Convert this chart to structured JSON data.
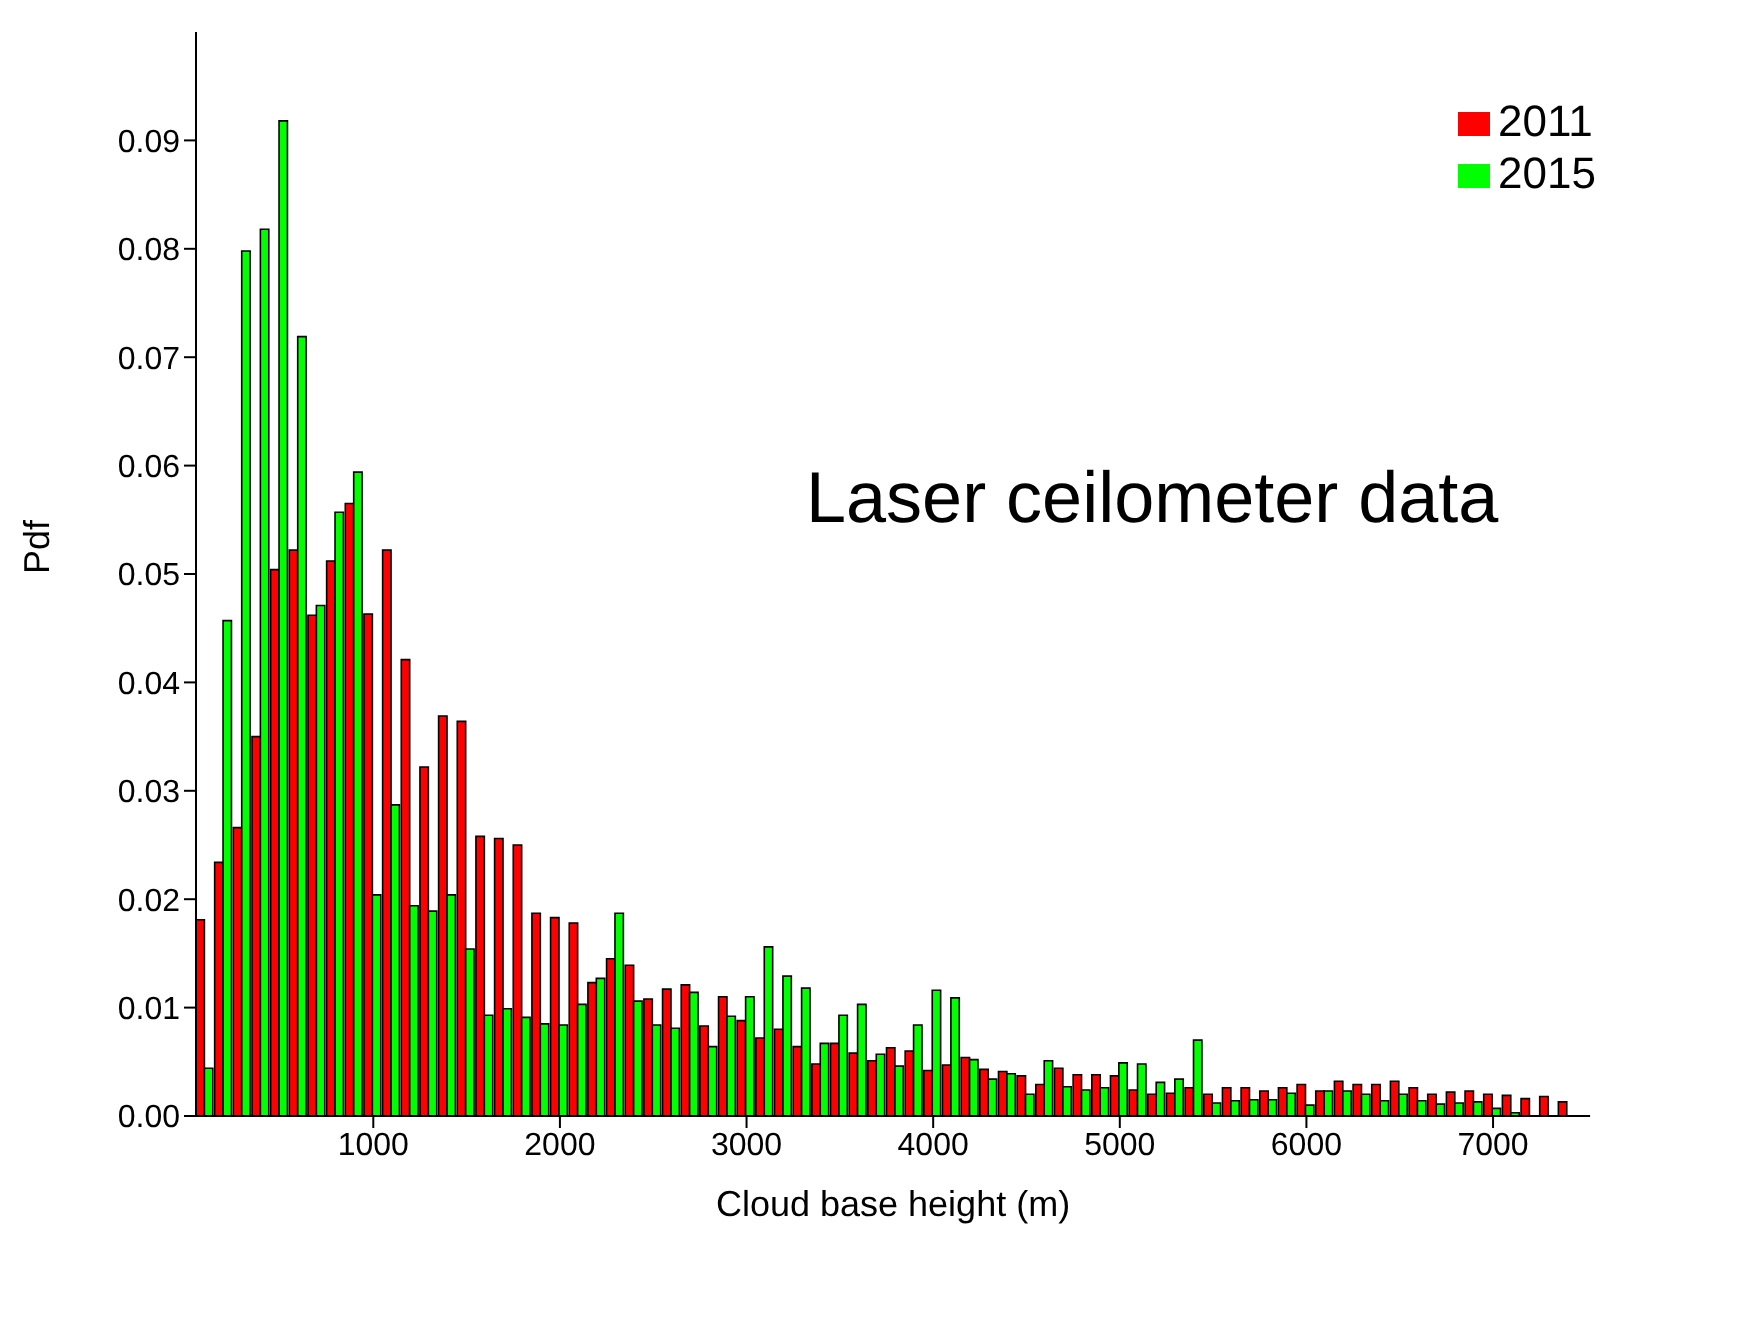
{
  "chart_data": {
    "type": "bar",
    "xlabel": "Cloud base height (m)",
    "ylabel": "Pdf",
    "annotations": [
      "Laser ceilometer data"
    ],
    "x": [
      100,
      200,
      300,
      400,
      500,
      600,
      700,
      800,
      900,
      1000,
      1100,
      1200,
      1300,
      1400,
      1500,
      1600,
      1700,
      1800,
      1900,
      2000,
      2100,
      2200,
      2300,
      2400,
      2500,
      2600,
      2700,
      2800,
      2900,
      3000,
      3100,
      3200,
      3300,
      3400,
      3500,
      3600,
      3700,
      3800,
      3900,
      4000,
      4100,
      4200,
      4300,
      4400,
      4500,
      4600,
      4700,
      4800,
      4900,
      5000,
      5100,
      5200,
      5300,
      5400,
      5500,
      5600,
      5700,
      5800,
      5900,
      6000,
      6100,
      6200,
      6300,
      6400,
      6500,
      6600,
      6700,
      6800,
      6900,
      7000,
      7100,
      7200,
      7300,
      7400
    ],
    "series": [
      {
        "name": "2011",
        "color": "#ff0000",
        "values": [
          0.0181,
          0.0234,
          0.0266,
          0.035,
          0.0504,
          0.0522,
          0.0462,
          0.0512,
          0.0565,
          0.0463,
          0.0522,
          0.0421,
          0.0322,
          0.0369,
          0.0364,
          0.0258,
          0.0256,
          0.025,
          0.0187,
          0.0183,
          0.0178,
          0.0123,
          0.0145,
          0.0139,
          0.0108,
          0.0117,
          0.0121,
          0.0083,
          0.011,
          0.0088,
          0.0072,
          0.008,
          0.0064,
          0.0048,
          0.0067,
          0.0058,
          0.0051,
          0.0063,
          0.006,
          0.0042,
          0.0047,
          0.0054,
          0.0043,
          0.0041,
          0.0037,
          0.0029,
          0.0044,
          0.0038,
          0.0038,
          0.0037,
          0.0024,
          0.002,
          0.0021,
          0.0026,
          0.002,
          0.0026,
          0.0026,
          0.0023,
          0.0026,
          0.0029,
          0.0023,
          0.0032,
          0.0029,
          0.0029,
          0.0032,
          0.0026,
          0.002,
          0.0022,
          0.0023,
          0.002,
          0.0019,
          0.0016,
          0.0018,
          0.0013
        ]
      },
      {
        "name": "2015",
        "color": "#00ff00",
        "values": [
          0.0044,
          0.0457,
          0.0798,
          0.0818,
          0.0918,
          0.0719,
          0.0471,
          0.0557,
          0.0594,
          0.0204,
          0.0287,
          0.0194,
          0.0189,
          0.0204,
          0.0154,
          0.0093,
          0.0099,
          0.0091,
          0.0085,
          0.0084,
          0.0103,
          0.0127,
          0.0187,
          0.0106,
          0.0084,
          0.0081,
          0.0114,
          0.0064,
          0.0092,
          0.011,
          0.0156,
          0.0129,
          0.0118,
          0.0067,
          0.0093,
          0.0103,
          0.0057,
          0.0046,
          0.0084,
          0.0116,
          0.0109,
          0.0052,
          0.0034,
          0.0039,
          0.002,
          0.0051,
          0.0027,
          0.0024,
          0.0026,
          0.0049,
          0.0048,
          0.0031,
          0.0034,
          0.007,
          0.0012,
          0.0014,
          0.0015,
          0.0015,
          0.0021,
          0.001,
          0.0023,
          0.0023,
          0.002,
          0.0014,
          0.002,
          0.0014,
          0.0011,
          0.0012,
          0.0013,
          0.0007,
          0.0003,
          null,
          null,
          0
        ]
      }
    ],
    "xlim": [
      50,
      7520
    ],
    "xticks": [
      1000,
      2000,
      3000,
      4000,
      5000,
      6000,
      7000
    ],
    "ylim": [
      0,
      0.1
    ],
    "yticks": [
      {
        "value": 0,
        "label": "0.00"
      },
      {
        "value": 0.01,
        "label": "0.01"
      },
      {
        "value": 0.02,
        "label": "0.02"
      },
      {
        "value": 0.03,
        "label": "0.03"
      },
      {
        "value": 0.04,
        "label": "0.04"
      },
      {
        "value": 0.05,
        "label": "0.05"
      },
      {
        "value": 0.06,
        "label": "0.06"
      },
      {
        "value": 0.07,
        "label": "0.07"
      },
      {
        "value": 0.08,
        "label": "0.08"
      },
      {
        "value": 0.09,
        "label": "0.09"
      }
    ],
    "grid": false,
    "legend": "top right"
  }
}
